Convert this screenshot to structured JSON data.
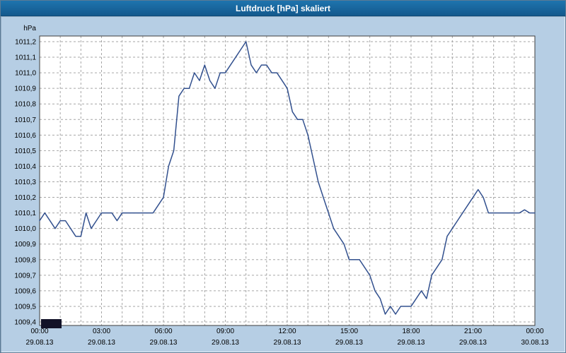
{
  "window": {
    "title": "Luftdruck [hPa] skaliert"
  },
  "chart_data": {
    "type": "line",
    "title": "Luftdruck [hPa] skaliert",
    "unit_label": "hPa",
    "series_name": "Luftdruck",
    "grid": true,
    "legend_position": "none",
    "ylim": [
      1009.4,
      1011.2
    ],
    "ytick_step": 0.1,
    "ytick_labels": [
      "1011,2",
      "1011,1",
      "1011,0",
      "1010,9",
      "1010,8",
      "1010,7",
      "1010,6",
      "1010,5",
      "1010,4",
      "1010,3",
      "1010,2",
      "1010,1",
      "1010,0",
      "1009,9",
      "1009,8",
      "1009,7",
      "1009,6",
      "1009,5",
      "1009,4"
    ],
    "xlim_hours": [
      0,
      24
    ],
    "xtick_hours": [
      0,
      3,
      6,
      9,
      12,
      15,
      18,
      21,
      24
    ],
    "xtick_time_labels": [
      "00:00",
      "03:00",
      "06:00",
      "09:00",
      "12:00",
      "15:00",
      "18:00",
      "21:00",
      "00:00"
    ],
    "xtick_date_labels": [
      "29.08.13",
      "29.08.13",
      "29.08.13",
      "29.08.13",
      "29.08.13",
      "29.08.13",
      "29.08.13",
      "29.08.13",
      "30.08.13"
    ],
    "x_start_hour": 0,
    "x_step_hours": 0.25,
    "values": [
      1010.05,
      1010.1,
      1010.05,
      1010.0,
      1010.05,
      1010.05,
      1010.0,
      1009.95,
      1009.95,
      1010.1,
      1010.0,
      1010.05,
      1010.1,
      1010.1,
      1010.1,
      1010.05,
      1010.1,
      1010.1,
      1010.1,
      1010.1,
      1010.1,
      1010.1,
      1010.1,
      1010.15,
      1010.2,
      1010.4,
      1010.5,
      1010.85,
      1010.9,
      1010.9,
      1011.0,
      1010.95,
      1011.05,
      1010.95,
      1010.9,
      1011.0,
      1011.0,
      1011.05,
      1011.1,
      1011.15,
      1011.2,
      1011.05,
      1011.0,
      1011.05,
      1011.05,
      1011.0,
      1011.0,
      1010.95,
      1010.9,
      1010.75,
      1010.7,
      1010.7,
      1010.6,
      1010.45,
      1010.3,
      1010.2,
      1010.1,
      1010.0,
      1009.95,
      1009.9,
      1009.8,
      1009.8,
      1009.8,
      1009.75,
      1009.7,
      1009.6,
      1009.55,
      1009.45,
      1009.5,
      1009.45,
      1009.5,
      1009.5,
      1009.5,
      1009.55,
      1009.6,
      1009.55,
      1009.7,
      1009.75,
      1009.8,
      1009.95,
      1010.0,
      1010.05,
      1010.1,
      1010.15,
      1010.2,
      1010.25,
      1010.2,
      1010.1,
      1010.1,
      1010.1,
      1010.1,
      1010.1,
      1010.1,
      1010.1,
      1010.12,
      1010.1,
      1010.1
    ],
    "colors": {
      "titlebar_bg": "#17639b",
      "panel_bg": "#b6cee4",
      "plot_bg": "#ffffff",
      "grid": "#a6a6a6",
      "axis": "#3c3c3c",
      "line": "#32508e",
      "swatch": "#121228",
      "text": "#000000",
      "title_text": "#ffffff"
    }
  }
}
